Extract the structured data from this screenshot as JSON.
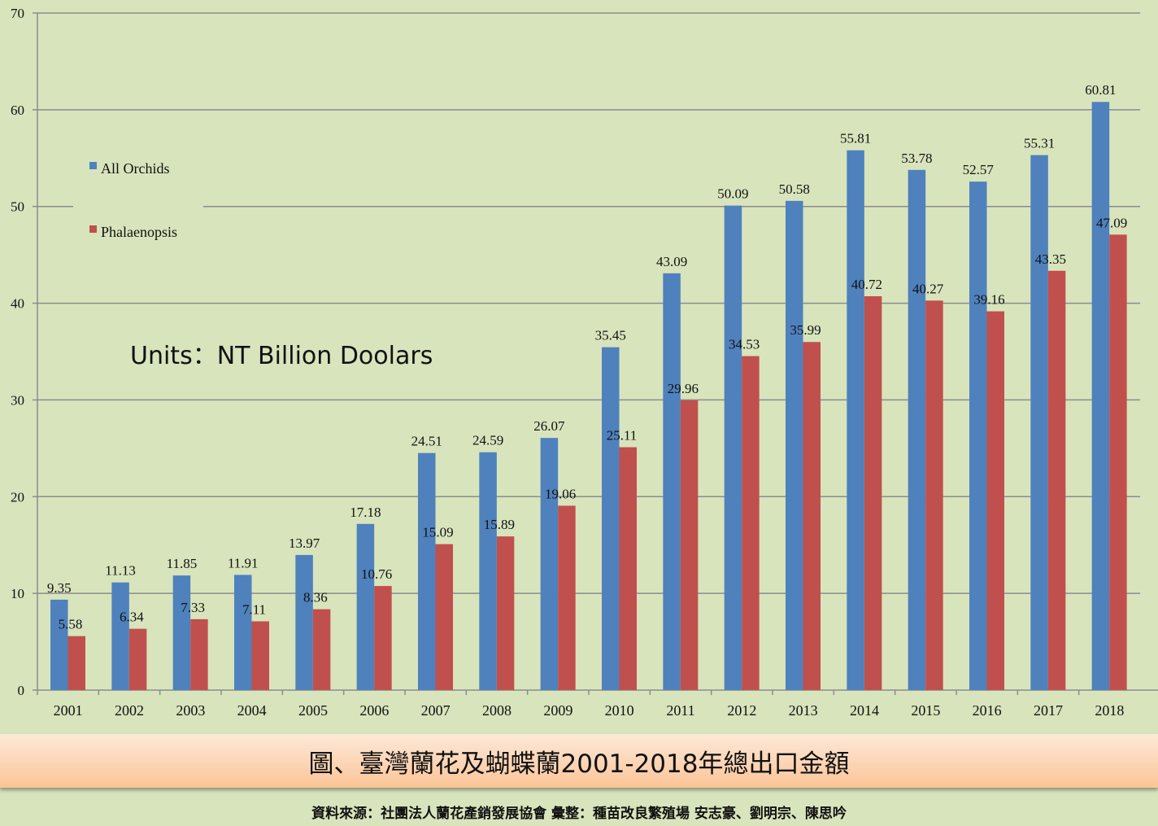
{
  "chart_data": {
    "type": "bar",
    "title": "",
    "categories": [
      "2001",
      "2002",
      "2003",
      "2004",
      "2005",
      "2006",
      "2007",
      "2008",
      "2009",
      "2010",
      "2011",
      "2012",
      "2013",
      "2014",
      "2015",
      "2016",
      "2017",
      "2018"
    ],
    "series": [
      {
        "name": "All Orchids",
        "color": "#4f81bd",
        "values": [
          9.35,
          11.13,
          11.85,
          11.91,
          13.97,
          17.18,
          24.51,
          24.59,
          26.07,
          35.45,
          43.09,
          50.09,
          50.58,
          55.81,
          53.78,
          52.57,
          55.31,
          60.81
        ]
      },
      {
        "name": "Phalaenopsis",
        "color": "#c0504d",
        "values": [
          5.58,
          6.34,
          7.33,
          7.11,
          8.36,
          10.76,
          15.09,
          15.89,
          19.06,
          25.11,
          29.96,
          34.53,
          35.99,
          40.72,
          40.27,
          39.16,
          43.35,
          47.09
        ]
      }
    ],
    "value_labels": {
      "All Orchids": [
        "9.35",
        "11.13",
        "11.85",
        "11.91",
        "13.97",
        "17.18",
        "24.51",
        "24.59",
        "26.07",
        "35.45",
        "43.09",
        "50.09",
        "50.58",
        "55.81",
        "53.78",
        "52.57",
        "55.31",
        "60.81"
      ],
      "Phalaenopsis": [
        "5.58",
        "6.34",
        "7.33",
        "7.11",
        "8.36",
        "10.76",
        "15.09",
        "15.89",
        "19.06",
        "25.11",
        "29.96",
        "34.53",
        "35.99",
        "40.72",
        "40.27",
        "39.16",
        "43.35",
        "47.09"
      ]
    },
    "xlabel": "",
    "ylabel": "",
    "ylim": [
      0,
      70
    ],
    "yticks": [
      "0",
      "10",
      "20",
      "30",
      "40",
      "50",
      "60",
      "70"
    ],
    "grid": true,
    "legend_position": "left"
  },
  "units_note": "Units：NT Billion Doolars",
  "caption": "圖、臺灣蘭花及蝴蝶蘭2001-2018年總出口金額",
  "source": "資料來源：社團法人蘭花產銷發展協會 彙整：種苗改良繁殖場 安志豪、劉明宗、陳思吟"
}
